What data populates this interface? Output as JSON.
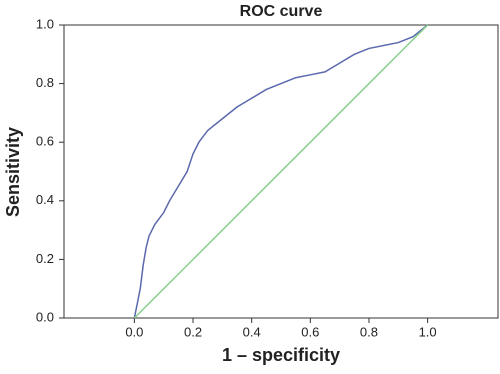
{
  "chart_data": {
    "type": "line",
    "title": "ROC curve",
    "x_label": "1 – specificity",
    "y_label": "Sensitivity",
    "xlim": [
      -0.24,
      1.24
    ],
    "ylim": [
      0,
      1
    ],
    "xticks": [
      {
        "value": 0,
        "label": "0.0"
      },
      0.2,
      0.4,
      0.6,
      0.8,
      {
        "value": 1,
        "label": "1.0"
      }
    ],
    "yticks": [
      {
        "value": 0,
        "label": "0.0"
      },
      0.2,
      0.4,
      0.6,
      0.8,
      {
        "value": 1,
        "label": "1.0"
      }
    ],
    "grid": false,
    "series": [
      {
        "color": "#5b68ad",
        "x": [
          0,
          0.01,
          0.02,
          0.03,
          0.04,
          0.05,
          0.07,
          0.1,
          0.12,
          0.15,
          0.18,
          0.2,
          0.22,
          0.25,
          0.3,
          0.35,
          0.4,
          0.45,
          0.5,
          0.55,
          0.6,
          0.65,
          0.7,
          0.75,
          0.8,
          0.9,
          0.95,
          1.0
        ],
        "values": [
          0,
          0.05,
          0.1,
          0.18,
          0.24,
          0.28,
          0.32,
          0.36,
          0.4,
          0.45,
          0.5,
          0.56,
          0.6,
          0.64,
          0.68,
          0.72,
          0.75,
          0.78,
          0.8,
          0.82,
          0.83,
          0.84,
          0.87,
          0.9,
          0.92,
          0.94,
          0.96,
          1.0
        ]
      },
      {
        "color": "#86d18a",
        "x": [
          0,
          1
        ],
        "values": [
          0,
          1
        ]
      }
    ]
  }
}
